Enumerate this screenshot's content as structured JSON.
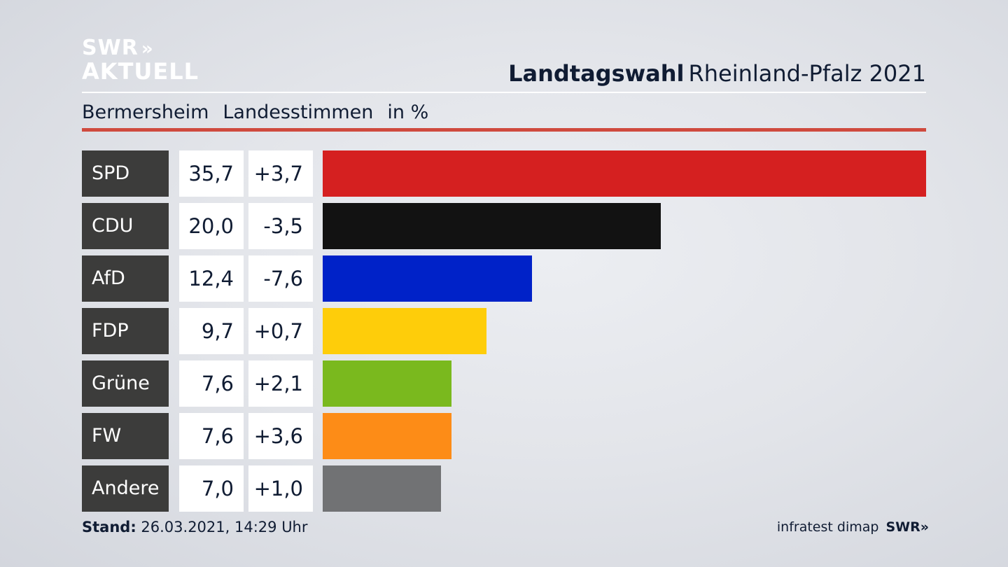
{
  "logo": {
    "line1": "SWR",
    "arrows": "»",
    "line2": "AKTUELL"
  },
  "header": {
    "title_strong": "Landtagswahl",
    "title_light": "Rheinland-Pfalz 2021"
  },
  "subheader": {
    "place": "Bermersheim",
    "type": "Landesstimmen",
    "unit": "in %"
  },
  "colors": {
    "red_rule": "#cf4a3e",
    "party_label_bg": "#3c3c3b",
    "text": "#101c33"
  },
  "chart_data": {
    "type": "bar",
    "orientation": "horizontal",
    "categories": [
      "SPD",
      "CDU",
      "AfD",
      "FDP",
      "Grüne",
      "FW",
      "Andere"
    ],
    "values": [
      35.7,
      20.0,
      12.4,
      9.7,
      7.6,
      7.6,
      7.0
    ],
    "values_text": [
      "35,7",
      "20,0",
      "12,4",
      "9,7",
      "7,6",
      "7,6",
      "7,0"
    ],
    "changes": [
      3.7,
      -3.5,
      -7.6,
      0.7,
      2.1,
      3.6,
      1.0
    ],
    "changes_text": [
      "+3,7",
      "-3,5",
      "-7,6",
      "+0,7",
      "+2,1",
      "+3,6",
      "+1,0"
    ],
    "bar_colors": [
      "#d52020",
      "#121212",
      "#0022c8",
      "#fecd0a",
      "#7ab91e",
      "#fd8c17",
      "#717274"
    ],
    "xlim": [
      0,
      35.7
    ]
  },
  "footer": {
    "stand_label": "Stand:",
    "stand_value": "26.03.2021, 14:29 Uhr",
    "source": "infratest dimap",
    "brand": "SWR",
    "brand_arrows": "»"
  }
}
